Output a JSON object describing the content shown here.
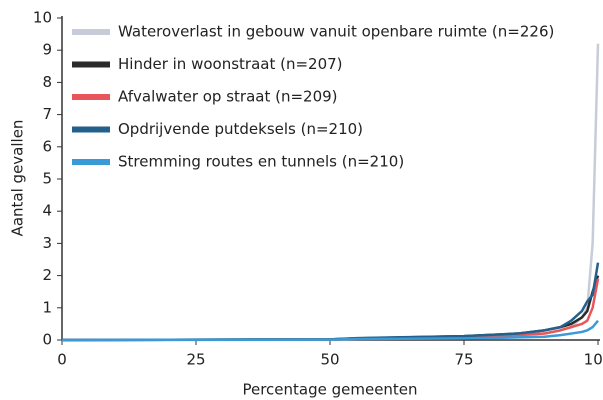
{
  "chart_data": {
    "type": "line",
    "xlabel": "Percentage gemeenten",
    "ylabel": "Aantal gevallen",
    "x": [
      0,
      50,
      55,
      75,
      85,
      90,
      93,
      95,
      97,
      98,
      99,
      100
    ],
    "series": [
      {
        "name": "Wateroverlast in gebouw vanuit openbare ruimte (n=226)",
        "color": "#c8ccd8",
        "values": [
          0,
          0.02,
          0.05,
          0.1,
          0.15,
          0.2,
          0.3,
          0.4,
          0.7,
          1.0,
          3.0,
          9.2
        ]
      },
      {
        "name": "Hinder in woonstraat (n=207)",
        "color": "#2b2b2b",
        "values": [
          0,
          0.02,
          0.05,
          0.12,
          0.2,
          0.3,
          0.4,
          0.5,
          0.7,
          0.9,
          1.5,
          2.0
        ]
      },
      {
        "name": "Afvalwater op straat (n=209)",
        "color": "#e8555a",
        "values": [
          0,
          0.01,
          0.04,
          0.1,
          0.15,
          0.2,
          0.3,
          0.4,
          0.5,
          0.6,
          1.0,
          1.9
        ]
      },
      {
        "name": "Opdrijvende putdeksels (n=210)",
        "color": "#23608c",
        "values": [
          0,
          0.02,
          0.06,
          0.12,
          0.2,
          0.3,
          0.4,
          0.6,
          0.9,
          1.2,
          1.4,
          2.4
        ]
      },
      {
        "name": "Stremming routes en tunnels (n=210)",
        "color": "#3a9ad8",
        "values": [
          0,
          0.01,
          0.03,
          0.05,
          0.08,
          0.1,
          0.15,
          0.2,
          0.25,
          0.3,
          0.4,
          0.6
        ]
      }
    ],
    "xlim": [
      0,
      100
    ],
    "xticks": [
      0,
      25,
      50,
      75,
      100
    ],
    "ylim": [
      0,
      10
    ],
    "yticks": [
      0,
      1,
      2,
      3,
      4,
      5,
      6,
      7,
      8,
      9,
      10
    ],
    "legend": "upper-left"
  }
}
